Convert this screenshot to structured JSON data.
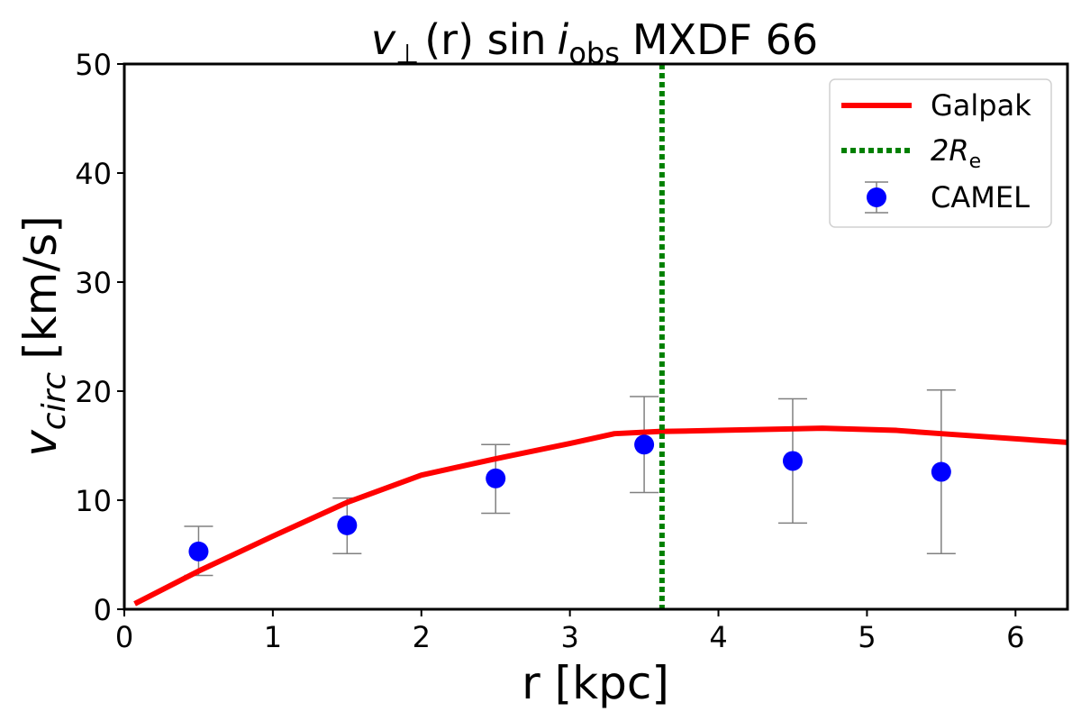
{
  "chart_data": {
    "type": "line",
    "title": {
      "v": "v",
      "perp": "⊥",
      "r": "(r) sin",
      "i": "i",
      "obs": "obs",
      "rest": "MXDF 66"
    },
    "xlabel": "r [kpc]",
    "ylabel": {
      "v": "v",
      "sub": "circ",
      "unit": "[km/s]"
    },
    "xlim": [
      0,
      6.35
    ],
    "ylim": [
      0,
      50
    ],
    "xticks": [
      0,
      1,
      2,
      3,
      4,
      5,
      6
    ],
    "yticks": [
      0,
      10,
      20,
      30,
      40,
      50
    ],
    "legend_position": "top-right",
    "series": [
      {
        "name": "Galpak",
        "kind": "line",
        "color": "#ff0000",
        "x": [
          0.07,
          0.5,
          1.0,
          1.5,
          2.0,
          2.5,
          3.0,
          3.3,
          3.6,
          4.0,
          4.7,
          5.2,
          5.5,
          6.35
        ],
        "y": [
          0.5,
          3.5,
          6.7,
          9.8,
          12.3,
          13.8,
          15.2,
          16.1,
          16.3,
          16.4,
          16.6,
          16.4,
          16.1,
          15.3
        ]
      },
      {
        "name": "2R",
        "sub": "e",
        "kind": "vline",
        "color": "#008000",
        "x": 3.62
      },
      {
        "name": "CAMEL",
        "kind": "errorbar",
        "color": "#0000ff",
        "errcolor": "#808080",
        "x": [
          0.5,
          1.5,
          2.5,
          3.5,
          4.5,
          5.5
        ],
        "y": [
          5.3,
          7.7,
          12.0,
          15.1,
          13.6,
          12.6
        ],
        "ylow": [
          3.1,
          5.1,
          8.8,
          10.7,
          7.9,
          5.1
        ],
        "yhigh": [
          7.6,
          10.2,
          15.1,
          19.5,
          19.3,
          20.1
        ]
      }
    ]
  }
}
